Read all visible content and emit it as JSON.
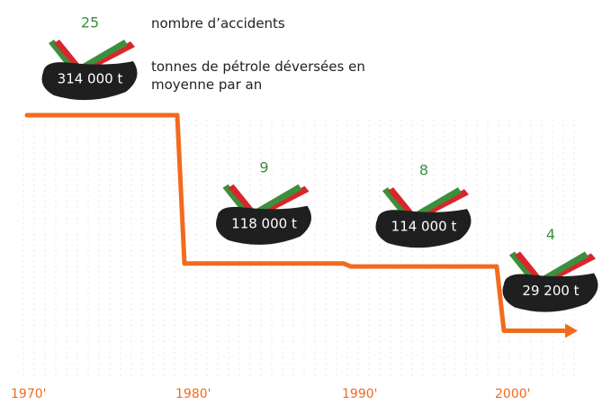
{
  "chart_data": {
    "type": "step",
    "categories": [
      "1970'",
      "1980'",
      "1990'",
      "2000'"
    ],
    "series": [
      {
        "name": "tonnes de pétrole déversées en moyenne par an",
        "color": "#f26b1d",
        "values": [
          314000,
          118000,
          114000,
          29200
        ],
        "value_labels": [
          "314 000 t",
          "118 000 t",
          "114 000 t",
          "29 200 t"
        ]
      },
      {
        "name": "nombre d’accidents",
        "color": "#3d8f3d",
        "values": [
          25,
          9,
          8,
          4
        ]
      }
    ]
  }
}
